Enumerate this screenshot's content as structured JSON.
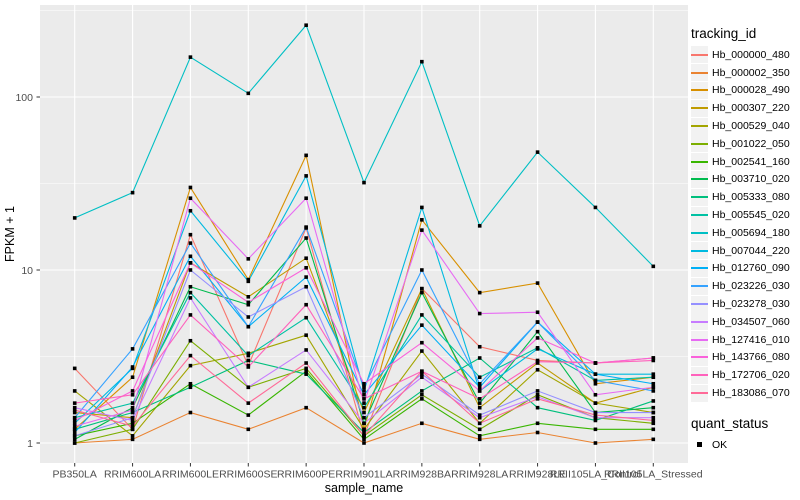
{
  "figure": {
    "background": "#FFFFFF",
    "panel_bg": "#EBEBEB",
    "grid_color": "#FFFFFF",
    "tick_color": "#333333",
    "axis_text_color": "#4D4D4D",
    "point_color": "#000000"
  },
  "chart_data": {
    "type": "line",
    "title": "",
    "xlabel": "sample_name",
    "ylabel": "FPKM + 1",
    "y_scale": "log10",
    "ylim": [
      0.8,
      330
    ],
    "y_ticks": [
      1,
      10,
      100
    ],
    "y_tick_labels": [
      "1",
      "10",
      "100"
    ],
    "y_minor_breaks": [
      3.162,
      31.62,
      316.2
    ],
    "grid": true,
    "legend_position": "right",
    "point_shape": "filled-square",
    "categories": [
      "PB350LA",
      "RRIM600LA",
      "RRIM600LE",
      "RRIM600SE",
      "RRIM600PE",
      "RRIM901LA",
      "RRIM928BA",
      "RRIM928LA",
      "RRIM928LE",
      "RRII105LA_Control",
      "RRII105LA_Stressed"
    ],
    "series": [
      {
        "name": "Hb_000000_480",
        "color": "#F8766D",
        "values": [
          2.7,
          1.2,
          16,
          2.8,
          17.5,
          1.1,
          7.8,
          3.6,
          3.0,
          2.9,
          3.1
        ]
      },
      {
        "name": "Hb_000002_350",
        "color": "#EA8331",
        "values": [
          1.0,
          1.05,
          1.5,
          1.2,
          1.6,
          1.0,
          1.3,
          1.05,
          1.15,
          1.0,
          1.05
        ]
      },
      {
        "name": "Hb_000028_490",
        "color": "#D89000",
        "values": [
          1.2,
          2.4,
          30,
          8.8,
          46,
          1.2,
          19.5,
          7.4,
          8.4,
          2.2,
          2.4
        ]
      },
      {
        "name": "Hb_000307_220",
        "color": "#C09B00",
        "values": [
          1.5,
          1.4,
          11,
          7.0,
          11.7,
          1.5,
          7.8,
          1.6,
          2.9,
          1.7,
          2.1
        ]
      },
      {
        "name": "Hb_000529_040",
        "color": "#A3A500",
        "values": [
          2.0,
          1.1,
          2.8,
          3.3,
          4.2,
          1.2,
          3.4,
          1.3,
          2.65,
          1.7,
          1.5
        ]
      },
      {
        "name": "Hb_001022_050",
        "color": "#7CAE00",
        "values": [
          1.0,
          1.2,
          3.9,
          2.1,
          2.7,
          1.1,
          1.9,
          1.2,
          1.9,
          1.4,
          1.3
        ]
      },
      {
        "name": "Hb_002541_160",
        "color": "#39B600",
        "values": [
          1.1,
          1.3,
          2.2,
          1.45,
          2.6,
          1.05,
          1.8,
          1.1,
          1.3,
          1.2,
          1.2
        ]
      },
      {
        "name": "Hb_003710_020",
        "color": "#00BB4E",
        "values": [
          1.05,
          1.6,
          8.0,
          6.3,
          15.3,
          1.3,
          7.4,
          1.7,
          4.4,
          1.5,
          1.6
        ]
      },
      {
        "name": "Hb_005333_080",
        "color": "#00BF7D",
        "values": [
          1.2,
          1.5,
          2.1,
          3.0,
          2.5,
          1.15,
          2.0,
          3.1,
          1.6,
          1.35,
          1.75
        ]
      },
      {
        "name": "Hb_005545_020",
        "color": "#00C1A3",
        "values": [
          1.4,
          1.7,
          7.4,
          3.2,
          5.3,
          1.6,
          5.5,
          2.4,
          3.55,
          2.3,
          2.4
        ]
      },
      {
        "name": "Hb_005694_180",
        "color": "#00BFC4",
        "values": [
          20,
          28,
          170,
          105,
          260,
          32,
          160,
          18,
          48,
          23,
          10.5
        ]
      },
      {
        "name": "Hb_007044_220",
        "color": "#00BAE0",
        "values": [
          1.3,
          2.7,
          22,
          8.6,
          35,
          2.0,
          23,
          2.0,
          3.5,
          2.5,
          2.5
        ]
      },
      {
        "name": "Hb_012760_090",
        "color": "#00B0F6",
        "values": [
          1.15,
          2.75,
          12,
          4.7,
          9.1,
          1.9,
          4.8,
          2.1,
          5.0,
          2.5,
          2.2
        ]
      },
      {
        "name": "Hb_023226_030",
        "color": "#35A2FF",
        "values": [
          1.4,
          3.5,
          14.3,
          4.7,
          17.7,
          2.1,
          10,
          2.2,
          5.0,
          2.3,
          2.0
        ]
      },
      {
        "name": "Hb_023278_030",
        "color": "#9590FF",
        "values": [
          1.1,
          1.4,
          10,
          5.35,
          8.0,
          1.4,
          2.5,
          1.45,
          2.0,
          1.5,
          1.5
        ]
      },
      {
        "name": "Hb_034507_060",
        "color": "#C77CFF",
        "values": [
          1.6,
          1.35,
          6.9,
          2.1,
          3.45,
          1.3,
          2.4,
          1.4,
          1.85,
          1.4,
          1.4
        ]
      },
      {
        "name": "Hb_127416_010",
        "color": "#E76BF3",
        "values": [
          1.25,
          1.55,
          26,
          11.6,
          26,
          1.7,
          17,
          5.6,
          5.7,
          1.9,
          2.1
        ]
      },
      {
        "name": "Hb_143766_080",
        "color": "#FA62DB",
        "values": [
          1.35,
          2.0,
          11,
          6.5,
          10.3,
          2.2,
          3.8,
          2.0,
          4.05,
          2.9,
          3.1
        ]
      },
      {
        "name": "Hb_172706_020",
        "color": "#FF62BC",
        "values": [
          1.7,
          1.9,
          5.5,
          2.75,
          6.3,
          1.8,
          2.6,
          1.8,
          2.95,
          2.9,
          3.0
        ]
      },
      {
        "name": "Hb_183086_070",
        "color": "#FF6A98",
        "values": [
          1.55,
          1.25,
          3.2,
          1.7,
          2.9,
          1.1,
          2.6,
          1.3,
          1.8,
          1.45,
          1.35
        ]
      }
    ]
  },
  "legend": {
    "tracking_title": "tracking_id",
    "quant_title": "quant_status",
    "quant_items": [
      {
        "label": "OK"
      }
    ]
  }
}
